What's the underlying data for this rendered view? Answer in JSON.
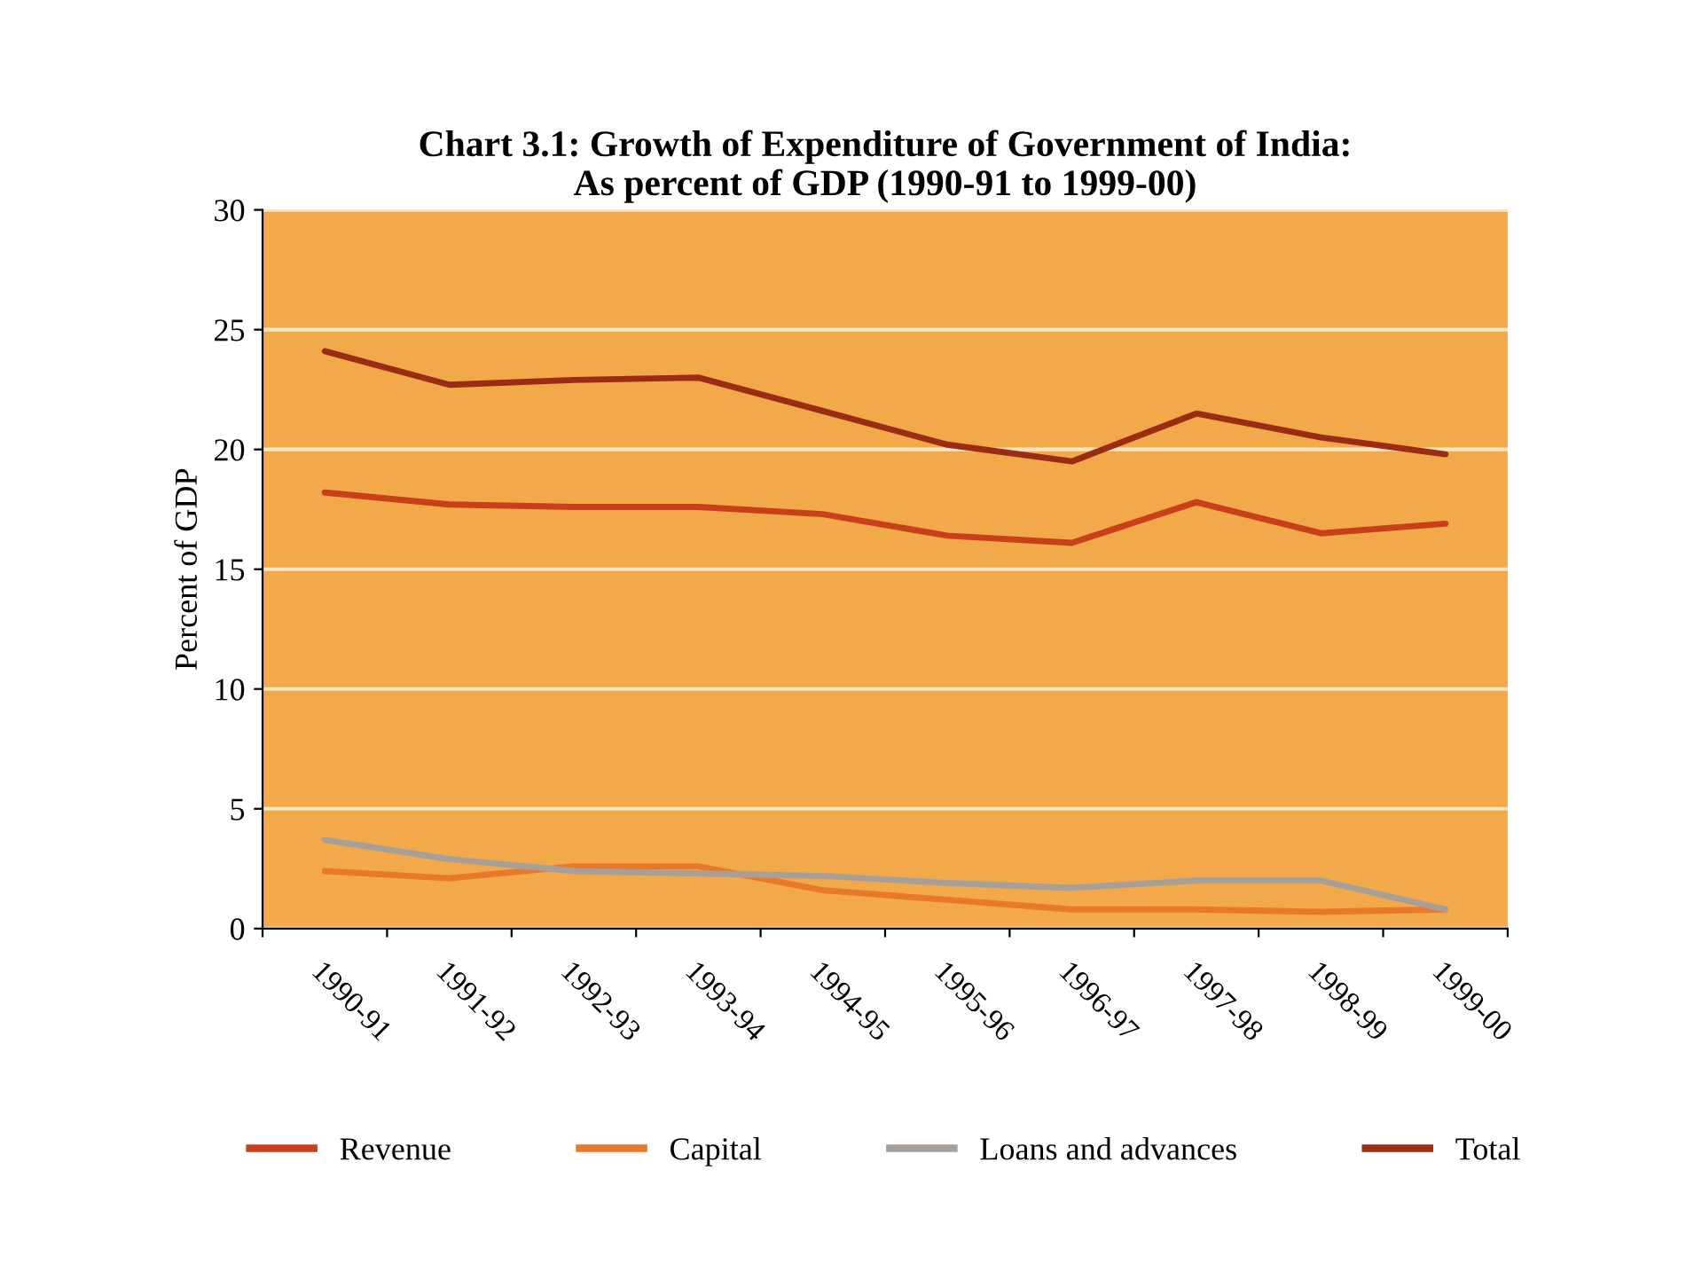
{
  "chart_data": {
    "type": "line",
    "title": "Chart 3.1: Growth of Expenditure of Government of India:\nAs percent of GDP (1990-91 to 1999-00)",
    "ylabel": "Percent of GDP",
    "categories": [
      "1990-91",
      "1991-92",
      "1992-93",
      "1993-94",
      "1994-95",
      "1995-96",
      "1996-97",
      "1997-98",
      "1998-99",
      "1999-00"
    ],
    "series": [
      {
        "name": "Revenue",
        "color": "#c8401a",
        "values": [
          18.2,
          17.7,
          17.6,
          17.6,
          17.3,
          16.4,
          16.1,
          17.8,
          16.5,
          16.9
        ]
      },
      {
        "name": "Capital",
        "color": "#e8782a",
        "values": [
          2.4,
          2.1,
          2.6,
          2.6,
          1.6,
          1.2,
          0.8,
          0.8,
          0.7,
          0.8
        ]
      },
      {
        "name": "Loans and advances",
        "color": "#a8a098",
        "values": [
          3.7,
          2.9,
          2.4,
          2.3,
          2.2,
          1.9,
          1.7,
          2.0,
          2.0,
          0.8
        ]
      },
      {
        "name": "Total",
        "color": "#9a2c14",
        "values": [
          24.1,
          22.7,
          22.9,
          23.0,
          21.6,
          20.2,
          19.5,
          21.5,
          20.5,
          19.8
        ]
      }
    ],
    "ylim": [
      0,
      30
    ],
    "yticks": [
      0,
      5,
      10,
      15,
      20,
      25,
      30
    ],
    "grid": "y",
    "legend": "bottom",
    "marker": "none",
    "line_style": "solid"
  }
}
